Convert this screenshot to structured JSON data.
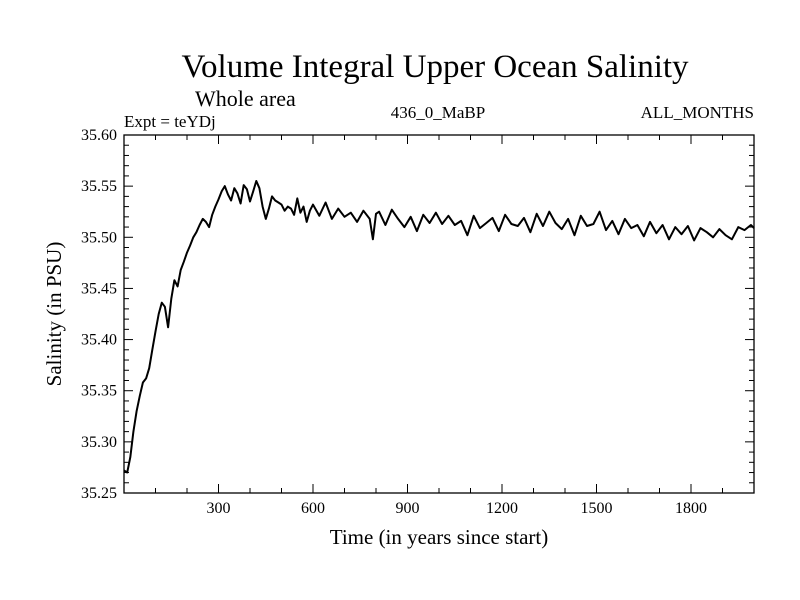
{
  "chart_data": {
    "type": "line",
    "title": "Volume Integral Upper Ocean Salinity",
    "subtitle": "Whole area",
    "experiment": "Expt = teYDj",
    "period": "436_0_MaBP",
    "months": "ALL_MONTHS",
    "xlabel": "Time (in years since start)",
    "ylabel": "Salinity (in PSU)",
    "xlim": [
      0,
      2000
    ],
    "ylim": [
      35.25,
      35.6
    ],
    "xticks": [
      300,
      600,
      900,
      1200,
      1500,
      1800
    ],
    "xtick_labels": [
      "300",
      "600",
      "900",
      "1200",
      "1500",
      "1800"
    ],
    "yticks": [
      35.25,
      35.3,
      35.35,
      35.4,
      35.45,
      35.5,
      35.55,
      35.6
    ],
    "ytick_labels": [
      "35.25",
      "35.30",
      "35.35",
      "35.40",
      "35.45",
      "35.50",
      "35.55",
      "35.60"
    ],
    "grid": false,
    "series": [
      {
        "name": "Salinity",
        "color": "#000000",
        "x": [
          0,
          10,
          20,
          30,
          40,
          50,
          60,
          70,
          80,
          90,
          100,
          110,
          120,
          130,
          140,
          150,
          160,
          170,
          180,
          190,
          200,
          210,
          220,
          230,
          240,
          250,
          260,
          270,
          280,
          290,
          300,
          310,
          320,
          330,
          340,
          350,
          360,
          370,
          380,
          390,
          400,
          410,
          420,
          430,
          440,
          450,
          460,
          470,
          480,
          490,
          500,
          510,
          520,
          530,
          540,
          550,
          560,
          570,
          580,
          590,
          600,
          620,
          640,
          660,
          680,
          700,
          720,
          740,
          760,
          780,
          790,
          800,
          810,
          830,
          850,
          870,
          890,
          910,
          930,
          950,
          970,
          990,
          1010,
          1030,
          1050,
          1070,
          1090,
          1110,
          1130,
          1150,
          1170,
          1190,
          1210,
          1230,
          1250,
          1270,
          1290,
          1310,
          1330,
          1350,
          1370,
          1390,
          1410,
          1430,
          1450,
          1470,
          1490,
          1510,
          1530,
          1550,
          1570,
          1590,
          1610,
          1630,
          1650,
          1670,
          1690,
          1710,
          1730,
          1750,
          1770,
          1790,
          1810,
          1830,
          1850,
          1870,
          1890,
          1910,
          1930,
          1950,
          1970,
          1990,
          2000
        ],
        "values": [
          35.272,
          35.27,
          35.285,
          35.31,
          35.33,
          35.345,
          35.358,
          35.362,
          35.372,
          35.39,
          35.408,
          35.425,
          35.436,
          35.432,
          35.412,
          35.44,
          35.458,
          35.452,
          35.468,
          35.476,
          35.485,
          35.492,
          35.5,
          35.505,
          35.512,
          35.518,
          35.515,
          35.51,
          35.522,
          35.53,
          35.537,
          35.545,
          35.55,
          35.542,
          35.536,
          35.548,
          35.543,
          35.533,
          35.551,
          35.547,
          35.535,
          35.545,
          35.555,
          35.548,
          35.53,
          35.518,
          35.528,
          35.54,
          35.536,
          35.534,
          35.532,
          35.526,
          35.53,
          35.528,
          35.522,
          35.538,
          35.524,
          35.53,
          35.515,
          35.526,
          35.532,
          35.521,
          35.534,
          35.518,
          35.528,
          35.52,
          35.524,
          35.515,
          35.526,
          35.518,
          35.498,
          35.523,
          35.525,
          35.512,
          35.527,
          35.518,
          35.51,
          35.52,
          35.506,
          35.522,
          35.514,
          35.524,
          35.513,
          35.521,
          35.512,
          35.516,
          35.502,
          35.521,
          35.509,
          35.514,
          35.519,
          35.506,
          35.522,
          35.513,
          35.511,
          35.519,
          35.505,
          35.523,
          35.511,
          35.525,
          35.514,
          35.508,
          35.518,
          35.502,
          35.521,
          35.511,
          35.513,
          35.525,
          35.507,
          35.516,
          35.503,
          35.518,
          35.509,
          35.512,
          35.501,
          35.515,
          35.504,
          35.512,
          35.498,
          35.51,
          35.503,
          35.511,
          35.497,
          35.509,
          35.505,
          35.5,
          35.508,
          35.502,
          35.498,
          35.51,
          35.507,
          35.512,
          35.509
        ]
      }
    ]
  }
}
